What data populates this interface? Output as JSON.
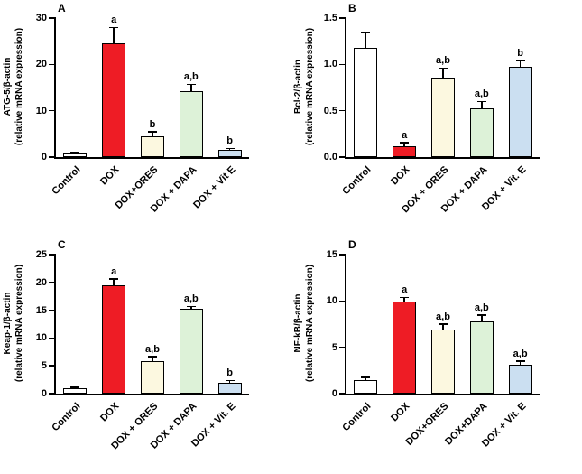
{
  "figure": {
    "bar_colors": [
      "#ffffff",
      "#ee1c25",
      "#fcf8e0",
      "#ddf2d8",
      "#cbdff1"
    ],
    "bar_border_color": "#000000",
    "axis_color": "#000000"
  },
  "chart_data": [
    {
      "type": "bar",
      "panel_label": "A",
      "ylabel": "ATG-5/β-actin\n(relative mRNA expression)",
      "categories": [
        "Control",
        "DOX",
        "DOX+ORES",
        "DOX + DAPA",
        "DOX + Vit E"
      ],
      "values": [
        0.8,
        24.5,
        4.5,
        14.2,
        1.5
      ],
      "errors": [
        0.2,
        3.5,
        1.0,
        1.5,
        0.4
      ],
      "sig_labels": [
        "",
        "a",
        "b",
        "a,b",
        "b"
      ],
      "ylim": [
        0,
        30
      ],
      "yticks": [
        0,
        10,
        20,
        30
      ],
      "ytick_labels": [
        "0",
        "10",
        "20",
        "30"
      ],
      "grid": false,
      "legend": "none"
    },
    {
      "type": "bar",
      "panel_label": "B",
      "ylabel": "Bcl-2/β-actin\n(relative mRNA expression)",
      "categories": [
        "Control",
        "DOX",
        "DOX + ORES",
        "DOX + DAPA",
        "DOX + Vit. E"
      ],
      "values": [
        1.18,
        0.12,
        0.86,
        0.53,
        0.97
      ],
      "errors": [
        0.17,
        0.04,
        0.1,
        0.07,
        0.07
      ],
      "sig_labels": [
        "",
        "a",
        "a,b",
        "a,b",
        "b"
      ],
      "ylim": [
        0,
        1.5
      ],
      "yticks": [
        0,
        0.5,
        1.0,
        1.5
      ],
      "ytick_labels": [
        "0.0",
        "0.5",
        "1.0",
        "1.5"
      ],
      "grid": false,
      "legend": "none"
    },
    {
      "type": "bar",
      "panel_label": "C",
      "ylabel": "Keap-1/β-actin\n(relative mRNA expression)",
      "categories": [
        "Control",
        "DOX",
        "DOX + ORES",
        "DOX + DAPA",
        "DOX + Vit. E"
      ],
      "values": [
        1.0,
        19.5,
        5.9,
        15.2,
        2.0
      ],
      "errors": [
        0.2,
        1.2,
        0.8,
        0.5,
        0.4
      ],
      "sig_labels": [
        "",
        "a",
        "a,b",
        "a,b",
        "b"
      ],
      "ylim": [
        0,
        25
      ],
      "yticks": [
        0,
        5,
        10,
        15,
        20,
        25
      ],
      "ytick_labels": [
        "0",
        "5",
        "10",
        "15",
        "20",
        "25"
      ],
      "grid": false,
      "legend": "none"
    },
    {
      "type": "bar",
      "panel_label": "D",
      "ylabel": "NF-kB/β-actin\n(relative mRNA expression)",
      "categories": [
        "Control",
        "DOX",
        "DOX+ORES",
        "DOX+DAPA",
        "DOX + Vit. E"
      ],
      "values": [
        1.5,
        9.9,
        6.9,
        7.8,
        3.1
      ],
      "errors": [
        0.3,
        0.5,
        0.6,
        0.7,
        0.4
      ],
      "sig_labels": [
        "",
        "a",
        "a,b",
        "a,b",
        "a,b"
      ],
      "ylim": [
        0,
        15
      ],
      "yticks": [
        0,
        5,
        10,
        15
      ],
      "ytick_labels": [
        "0",
        "5",
        "10",
        "15"
      ],
      "grid": false,
      "legend": "none"
    }
  ]
}
